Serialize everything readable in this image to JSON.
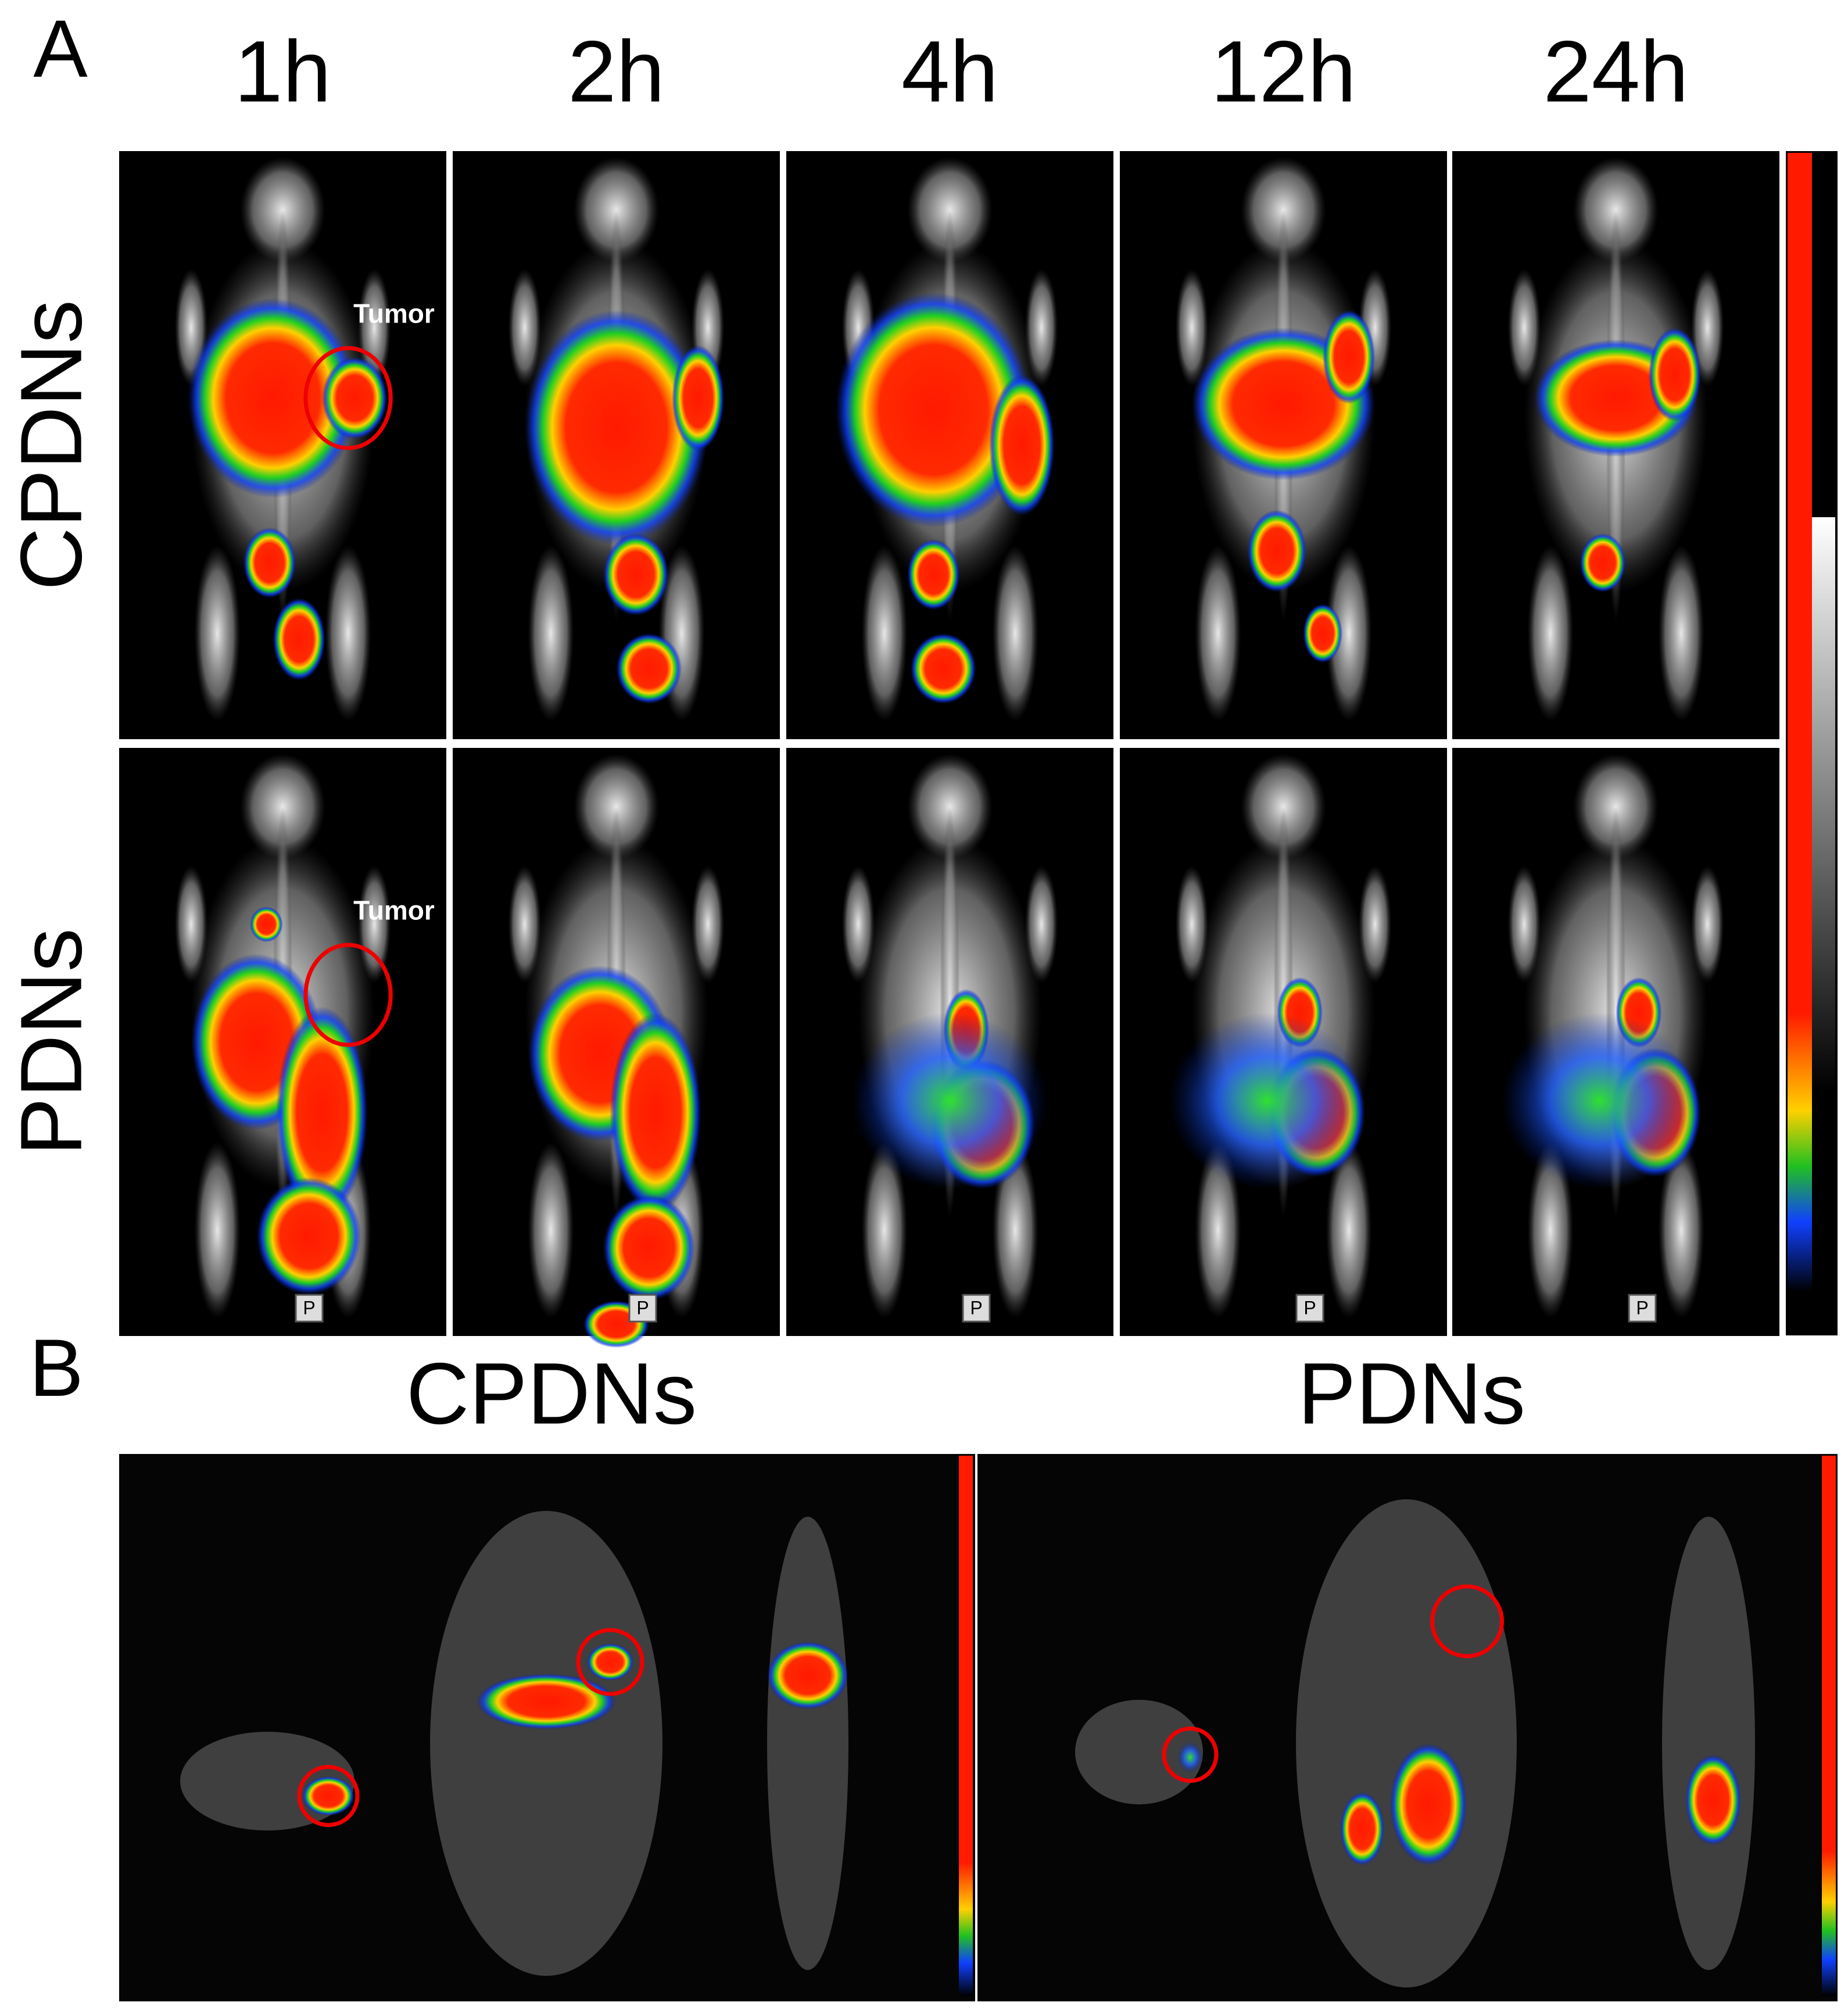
{
  "panel_a": {
    "label": "A",
    "columns": [
      "1h",
      "2h",
      "4h",
      "12h",
      "24h"
    ],
    "rows": [
      "CPDNs",
      "PDNs"
    ],
    "annotations": [
      "Tumor",
      "Tumor"
    ],
    "orientation_marker": "P"
  },
  "panel_b": {
    "label": "B",
    "titles": [
      "CPDNs",
      "PDNs"
    ]
  }
}
